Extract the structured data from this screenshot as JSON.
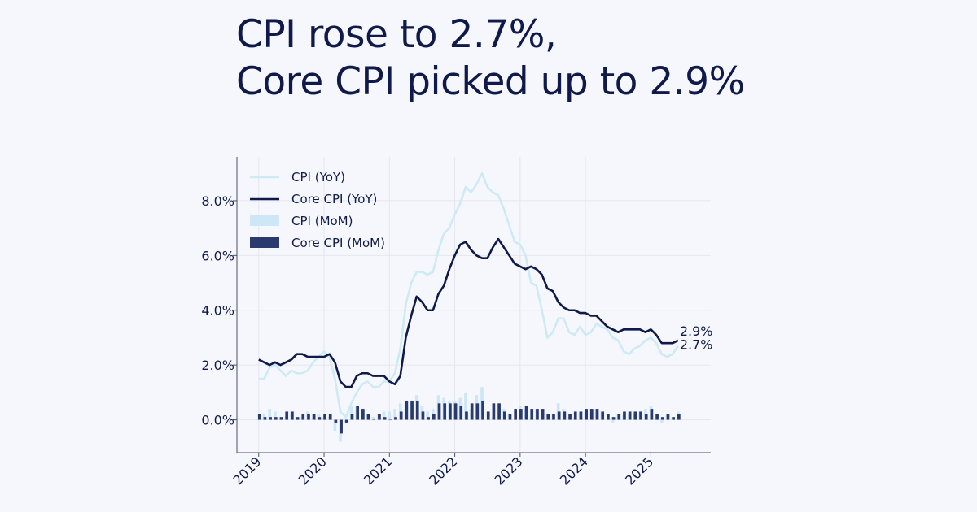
{
  "title": {
    "line1": "CPI rose to 2.7%,",
    "line2": "Core CPI picked up to 2.9%"
  },
  "colors": {
    "background": "#f5f7fc",
    "cpi_yoy": "#cdeaf5",
    "core_yoy": "#0f1a4a",
    "cpi_mom": "#cde7f7",
    "core_mom": "#2b3a6e",
    "text": "#0f1a4a",
    "grid": "#e4e7ef"
  },
  "chart_data": {
    "type": "line",
    "title": "",
    "xlabel": "",
    "ylabel": "",
    "x_ticks": [
      "2019",
      "2020",
      "2021",
      "2022",
      "2023",
      "2024",
      "2025"
    ],
    "y_ticks": [
      "0.0%",
      "2.0%",
      "4.0%",
      "6.0%",
      "8.0%"
    ],
    "ylim": [
      -1.2,
      9.6
    ],
    "xlim": [
      "2018-09",
      "2025-12"
    ],
    "grid": true,
    "legend_position": "top-left",
    "legend": [
      "CPI (YoY)",
      "Core CPI (YoY)",
      "CPI (MoM)",
      "Core CPI (MoM)"
    ],
    "x": [
      "2019-01",
      "2019-02",
      "2019-03",
      "2019-04",
      "2019-05",
      "2019-06",
      "2019-07",
      "2019-08",
      "2019-09",
      "2019-10",
      "2019-11",
      "2019-12",
      "2020-01",
      "2020-02",
      "2020-03",
      "2020-04",
      "2020-05",
      "2020-06",
      "2020-07",
      "2020-08",
      "2020-09",
      "2020-10",
      "2020-11",
      "2020-12",
      "2021-01",
      "2021-02",
      "2021-03",
      "2021-04",
      "2021-05",
      "2021-06",
      "2021-07",
      "2021-08",
      "2021-09",
      "2021-10",
      "2021-11",
      "2021-12",
      "2022-01",
      "2022-02",
      "2022-03",
      "2022-04",
      "2022-05",
      "2022-06",
      "2022-07",
      "2022-08",
      "2022-09",
      "2022-10",
      "2022-11",
      "2022-12",
      "2023-01",
      "2023-02",
      "2023-03",
      "2023-04",
      "2023-05",
      "2023-06",
      "2023-07",
      "2023-08",
      "2023-09",
      "2023-10",
      "2023-11",
      "2023-12",
      "2024-01",
      "2024-02",
      "2024-03",
      "2024-04",
      "2024-05",
      "2024-06",
      "2024-07",
      "2024-08",
      "2024-09",
      "2024-10",
      "2024-11",
      "2024-12",
      "2025-01",
      "2025-02",
      "2025-03",
      "2025-04",
      "2025-05",
      "2025-06"
    ],
    "series": [
      {
        "name": "CPI (YoY)",
        "kind": "line",
        "values": [
          1.5,
          1.5,
          1.9,
          2.0,
          1.8,
          1.6,
          1.8,
          1.7,
          1.7,
          1.8,
          2.1,
          2.3,
          2.5,
          2.3,
          1.5,
          0.3,
          0.1,
          0.6,
          1.0,
          1.3,
          1.4,
          1.2,
          1.2,
          1.4,
          1.4,
          1.7,
          2.6,
          4.2,
          5.0,
          5.4,
          5.4,
          5.3,
          5.4,
          6.2,
          6.8,
          7.0,
          7.5,
          7.9,
          8.5,
          8.3,
          8.6,
          9.0,
          8.5,
          8.3,
          8.2,
          7.7,
          7.1,
          6.5,
          6.4,
          6.0,
          5.0,
          4.9,
          4.0,
          3.0,
          3.2,
          3.7,
          3.7,
          3.2,
          3.1,
          3.4,
          3.1,
          3.2,
          3.5,
          3.4,
          3.3,
          3.0,
          2.9,
          2.5,
          2.4,
          2.6,
          2.7,
          2.9,
          3.0,
          2.8,
          2.4,
          2.3,
          2.4,
          2.7
        ]
      },
      {
        "name": "Core CPI (YoY)",
        "kind": "line",
        "values": [
          2.2,
          2.1,
          2.0,
          2.1,
          2.0,
          2.1,
          2.2,
          2.4,
          2.4,
          2.3,
          2.3,
          2.3,
          2.3,
          2.4,
          2.1,
          1.4,
          1.2,
          1.2,
          1.6,
          1.7,
          1.7,
          1.6,
          1.6,
          1.6,
          1.4,
          1.3,
          1.6,
          3.0,
          3.8,
          4.5,
          4.3,
          4.0,
          4.0,
          4.6,
          4.9,
          5.5,
          6.0,
          6.4,
          6.5,
          6.2,
          6.0,
          5.9,
          5.9,
          6.3,
          6.6,
          6.3,
          6.0,
          5.7,
          5.6,
          5.5,
          5.6,
          5.5,
          5.3,
          4.8,
          4.7,
          4.3,
          4.1,
          4.0,
          4.0,
          3.9,
          3.9,
          3.8,
          3.8,
          3.6,
          3.4,
          3.3,
          3.2,
          3.3,
          3.3,
          3.3,
          3.3,
          3.2,
          3.3,
          3.1,
          2.8,
          2.8,
          2.8,
          2.9
        ]
      },
      {
        "name": "CPI (MoM)",
        "kind": "bar",
        "values": [
          0.0,
          0.2,
          0.4,
          0.3,
          0.1,
          0.1,
          0.3,
          0.1,
          0.1,
          0.3,
          0.2,
          0.2,
          0.1,
          0.1,
          -0.4,
          -0.8,
          -0.1,
          0.5,
          0.5,
          0.4,
          0.2,
          0.1,
          0.2,
          0.3,
          0.3,
          0.4,
          0.6,
          0.7,
          0.6,
          0.9,
          0.5,
          0.3,
          0.4,
          0.9,
          0.8,
          0.7,
          0.7,
          0.8,
          1.0,
          0.4,
          0.9,
          1.2,
          0.0,
          0.1,
          0.4,
          0.4,
          0.2,
          0.0,
          0.5,
          0.4,
          0.1,
          0.4,
          0.1,
          0.2,
          0.2,
          0.6,
          0.4,
          0.1,
          0.1,
          0.3,
          0.3,
          0.4,
          0.4,
          0.3,
          0.0,
          -0.1,
          0.2,
          0.2,
          0.2,
          0.2,
          0.3,
          0.4,
          0.5,
          0.2,
          -0.1,
          0.2,
          0.1,
          0.3
        ]
      },
      {
        "name": "Core CPI (MoM)",
        "kind": "bar",
        "values": [
          0.2,
          0.1,
          0.1,
          0.1,
          0.1,
          0.3,
          0.3,
          0.1,
          0.2,
          0.2,
          0.2,
          0.1,
          0.2,
          0.2,
          -0.1,
          -0.5,
          -0.1,
          0.2,
          0.5,
          0.4,
          0.2,
          0.0,
          0.2,
          0.1,
          0.0,
          0.1,
          0.3,
          0.7,
          0.7,
          0.7,
          0.3,
          0.1,
          0.2,
          0.6,
          0.6,
          0.6,
          0.6,
          0.5,
          0.3,
          0.6,
          0.6,
          0.7,
          0.3,
          0.6,
          0.6,
          0.3,
          0.2,
          0.4,
          0.4,
          0.5,
          0.4,
          0.4,
          0.4,
          0.2,
          0.2,
          0.3,
          0.3,
          0.2,
          0.3,
          0.3,
          0.4,
          0.4,
          0.4,
          0.3,
          0.2,
          0.1,
          0.2,
          0.3,
          0.3,
          0.3,
          0.3,
          0.2,
          0.4,
          0.2,
          0.1,
          0.2,
          0.1,
          0.2
        ]
      }
    ],
    "annotations": [
      {
        "text": "2.9%",
        "series": "Core CPI (YoY)"
      },
      {
        "text": "2.7%",
        "series": "CPI (YoY)"
      }
    ]
  }
}
